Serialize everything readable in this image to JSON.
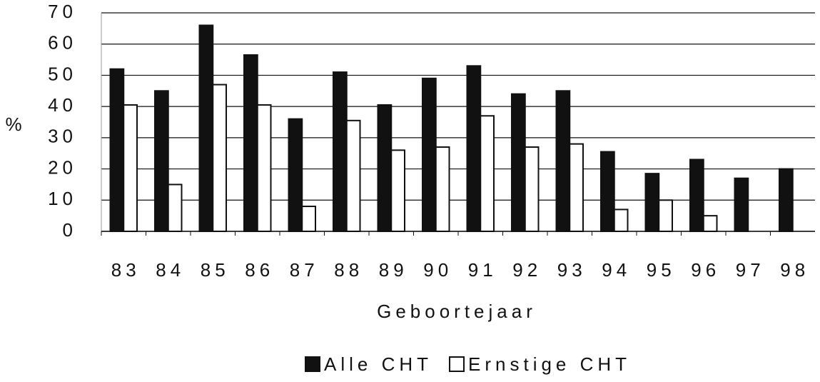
{
  "chart_data": {
    "type": "bar",
    "y_label": "%",
    "x_label": "Geboortejaar",
    "categories": [
      "83",
      "84",
      "85",
      "86",
      "87",
      "88",
      "89",
      "90",
      "91",
      "92",
      "93",
      "94",
      "95",
      "96",
      "97",
      "98"
    ],
    "series": [
      {
        "name": "Alle CHT",
        "color": "#111111",
        "values": [
          52,
          45,
          66,
          56.5,
          36,
          51,
          40.5,
          49,
          53,
          44,
          45,
          25.5,
          18.5,
          23,
          17,
          20
        ]
      },
      {
        "name": "Ernstige CHT",
        "color": "#ffffff",
        "values": [
          40.5,
          15,
          47,
          40.5,
          8,
          35.5,
          26,
          27,
          37,
          27,
          28,
          7,
          10,
          5,
          null,
          null
        ]
      }
    ],
    "ylim": [
      0,
      70
    ],
    "yticks": [
      0,
      10,
      20,
      30,
      40,
      50,
      60,
      70
    ],
    "grid": true,
    "legend": "bottom"
  }
}
